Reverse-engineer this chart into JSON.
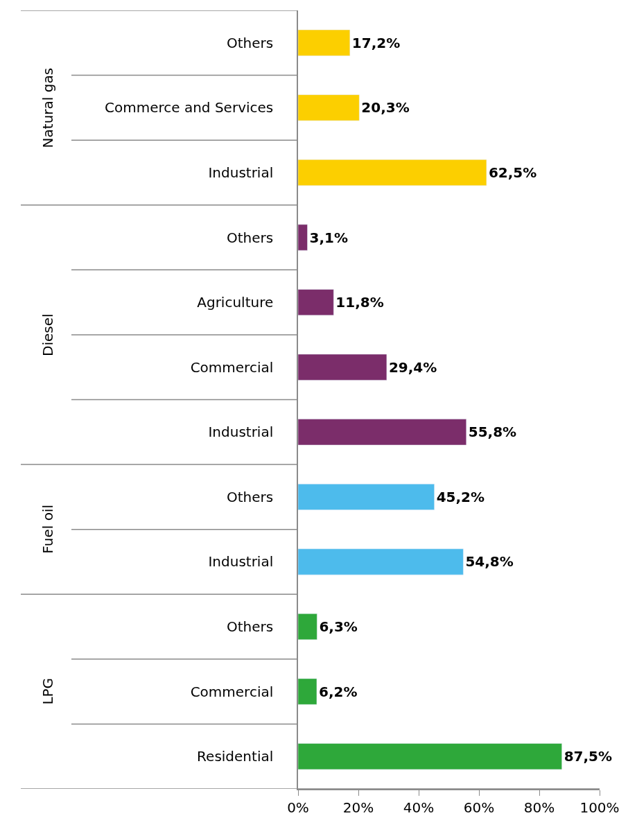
{
  "chart_data": {
    "type": "bar",
    "orientation": "horizontal",
    "categories": [
      "Others",
      "Commerce and Services",
      "Industrial",
      "Others",
      "Agriculture",
      "Commercial",
      "Industrial",
      "Others",
      "Industrial",
      "Others",
      "Commercial",
      "Residential"
    ],
    "series": [
      {
        "color": "#fccf00",
        "values": [
          17.2,
          20.3,
          62.5,
          null,
          null,
          null,
          null,
          null,
          null,
          null,
          null,
          null
        ],
        "value_labels": [
          "17,2%",
          "20,3%",
          "62,5%",
          null,
          null,
          null,
          null,
          null,
          null,
          null,
          null,
          null
        ]
      },
      {
        "color": "#7b2d6a",
        "values": [
          null,
          null,
          null,
          3.1,
          11.8,
          29.4,
          55.8,
          null,
          null,
          null,
          null,
          null
        ],
        "value_labels": [
          null,
          null,
          null,
          "3,1%",
          "11,8%",
          "29,4%",
          "55,8%",
          null,
          null,
          null,
          null,
          null
        ]
      },
      {
        "color": "#4dbbec",
        "values": [
          null,
          null,
          null,
          null,
          null,
          null,
          null,
          45.2,
          54.8,
          null,
          null,
          null
        ],
        "value_labels": [
          null,
          null,
          null,
          null,
          null,
          null,
          null,
          "45,2%",
          "54,8%",
          null,
          null,
          null
        ]
      },
      {
        "color": "#2ea83a",
        "values": [
          null,
          null,
          null,
          null,
          null,
          null,
          null,
          null,
          null,
          6.3,
          6.2,
          87.5
        ],
        "value_labels": [
          null,
          null,
          null,
          null,
          null,
          null,
          null,
          null,
          null,
          "6,3%",
          "6,2%",
          "87,5%"
        ]
      }
    ],
    "xlim": [
      0,
      100
    ],
    "xticks": [
      {
        "value": 0,
        "label": "0%"
      },
      {
        "value": 20,
        "label": "20%"
      },
      {
        "value": 40,
        "label": "40%"
      },
      {
        "value": 60,
        "label": "60%"
      },
      {
        "value": 80,
        "label": "80%"
      },
      {
        "value": 100,
        "label": "100%"
      }
    ],
    "annotations": [
      "Natural gas",
      "Diesel",
      "Fuel oil",
      "LPG"
    ],
    "legend": false
  }
}
